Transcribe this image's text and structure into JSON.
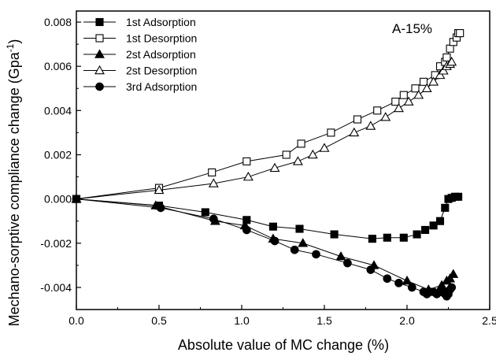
{
  "chart_data": {
    "type": "scatter",
    "annotation": "A-15%",
    "xlabel": "Absolute value of MC change (%)",
    "ylabel_main": "Mechano-sorptive compliance change (Gpa",
    "ylabel_sup": "-1",
    "ylabel_close": ")",
    "xlim": [
      0.0,
      2.5
    ],
    "ylim": [
      -0.005,
      0.0085
    ],
    "xticks": [
      0.0,
      0.5,
      1.0,
      1.5,
      2.0,
      2.5
    ],
    "xtick_labels": [
      "0.0",
      "0.5",
      "1.0",
      "1.5",
      "2.0",
      "2.5"
    ],
    "yticks": [
      -0.004,
      -0.002,
      0.0,
      0.002,
      0.004,
      0.006,
      0.008
    ],
    "ytick_labels": [
      "-0.004",
      "-0.002",
      "0.000",
      "0.002",
      "0.004",
      "0.006",
      "0.008"
    ],
    "grid": false,
    "legend_position": "top-left",
    "series": [
      {
        "name": "1st Adsorption",
        "marker": "square-filled",
        "x": [
          0.0,
          0.5,
          0.78,
          1.03,
          1.19,
          1.35,
          1.56,
          1.79,
          1.88,
          1.98,
          2.06,
          2.11,
          2.16,
          2.2,
          2.23,
          2.25,
          2.27,
          2.29,
          2.31
        ],
        "y": [
          0.0,
          -0.0003,
          -0.0006,
          -0.00095,
          -0.00125,
          -0.00135,
          -0.0016,
          -0.0018,
          -0.00175,
          -0.00175,
          -0.0016,
          -0.0014,
          -0.0012,
          -0.001,
          -0.0004,
          0.0,
          5e-05,
          0.0001,
          0.0001
        ]
      },
      {
        "name": "1st Desorption",
        "marker": "square-open",
        "x": [
          0.0,
          0.5,
          0.82,
          1.03,
          1.27,
          1.36,
          1.54,
          1.7,
          1.82,
          1.93,
          1.98,
          2.05,
          2.1,
          2.17,
          2.2,
          2.23,
          2.24,
          2.26,
          2.28,
          2.3,
          2.31,
          2.32
        ],
        "y": [
          0.0,
          0.0005,
          0.0012,
          0.0017,
          0.002,
          0.0025,
          0.003,
          0.0036,
          0.004,
          0.0044,
          0.0047,
          0.005,
          0.0053,
          0.0056,
          0.006,
          0.0062,
          0.0064,
          0.0068,
          0.0071,
          0.0073,
          0.0075,
          0.0075
        ]
      },
      {
        "name": "2st Adsorption",
        "marker": "triangle-filled",
        "x": [
          0.0,
          0.48,
          0.84,
          1.02,
          1.19,
          1.37,
          1.6,
          1.8,
          2.0,
          2.13,
          2.21,
          2.24,
          2.26,
          2.28
        ],
        "y": [
          0.0,
          -0.0003,
          -0.001,
          -0.0012,
          -0.0018,
          -0.002,
          -0.0026,
          -0.003,
          -0.0037,
          -0.0041,
          -0.0039,
          -0.0037,
          -0.0036,
          -0.0034
        ]
      },
      {
        "name": "2st Desorption",
        "marker": "triangle-open",
        "x": [
          0.0,
          0.5,
          0.83,
          1.04,
          1.2,
          1.34,
          1.43,
          1.5,
          1.68,
          1.78,
          1.87,
          1.95,
          2.01,
          2.07,
          2.12,
          2.16,
          2.2,
          2.22,
          2.24,
          2.26,
          2.27
        ],
        "y": [
          0.0,
          0.0004,
          0.0007,
          0.001,
          0.0014,
          0.0017,
          0.002,
          0.0023,
          0.003,
          0.0033,
          0.0037,
          0.0041,
          0.0044,
          0.0047,
          0.005,
          0.0053,
          0.0056,
          0.0058,
          0.006,
          0.0061,
          0.0062
        ]
      },
      {
        "name": "3rd Adsorption",
        "marker": "circle-filled",
        "x": [
          0.0,
          0.51,
          0.83,
          1.03,
          1.2,
          1.32,
          1.45,
          1.64,
          1.78,
          1.88,
          1.95,
          2.03,
          2.1,
          2.12,
          2.14,
          2.16,
          2.18,
          2.2,
          2.22,
          2.23,
          2.24,
          2.25,
          2.26,
          2.27
        ],
        "y": [
          0.0,
          -0.0004,
          -0.0009,
          -0.0014,
          -0.0019,
          -0.0023,
          -0.0025,
          -0.0029,
          -0.0032,
          -0.0036,
          -0.0038,
          -0.004,
          -0.0042,
          -0.0043,
          -0.0042,
          -0.0042,
          -0.0043,
          -0.0042,
          -0.0042,
          -0.0043,
          -0.0044,
          -0.0043,
          -0.0041,
          -0.004
        ]
      }
    ]
  }
}
